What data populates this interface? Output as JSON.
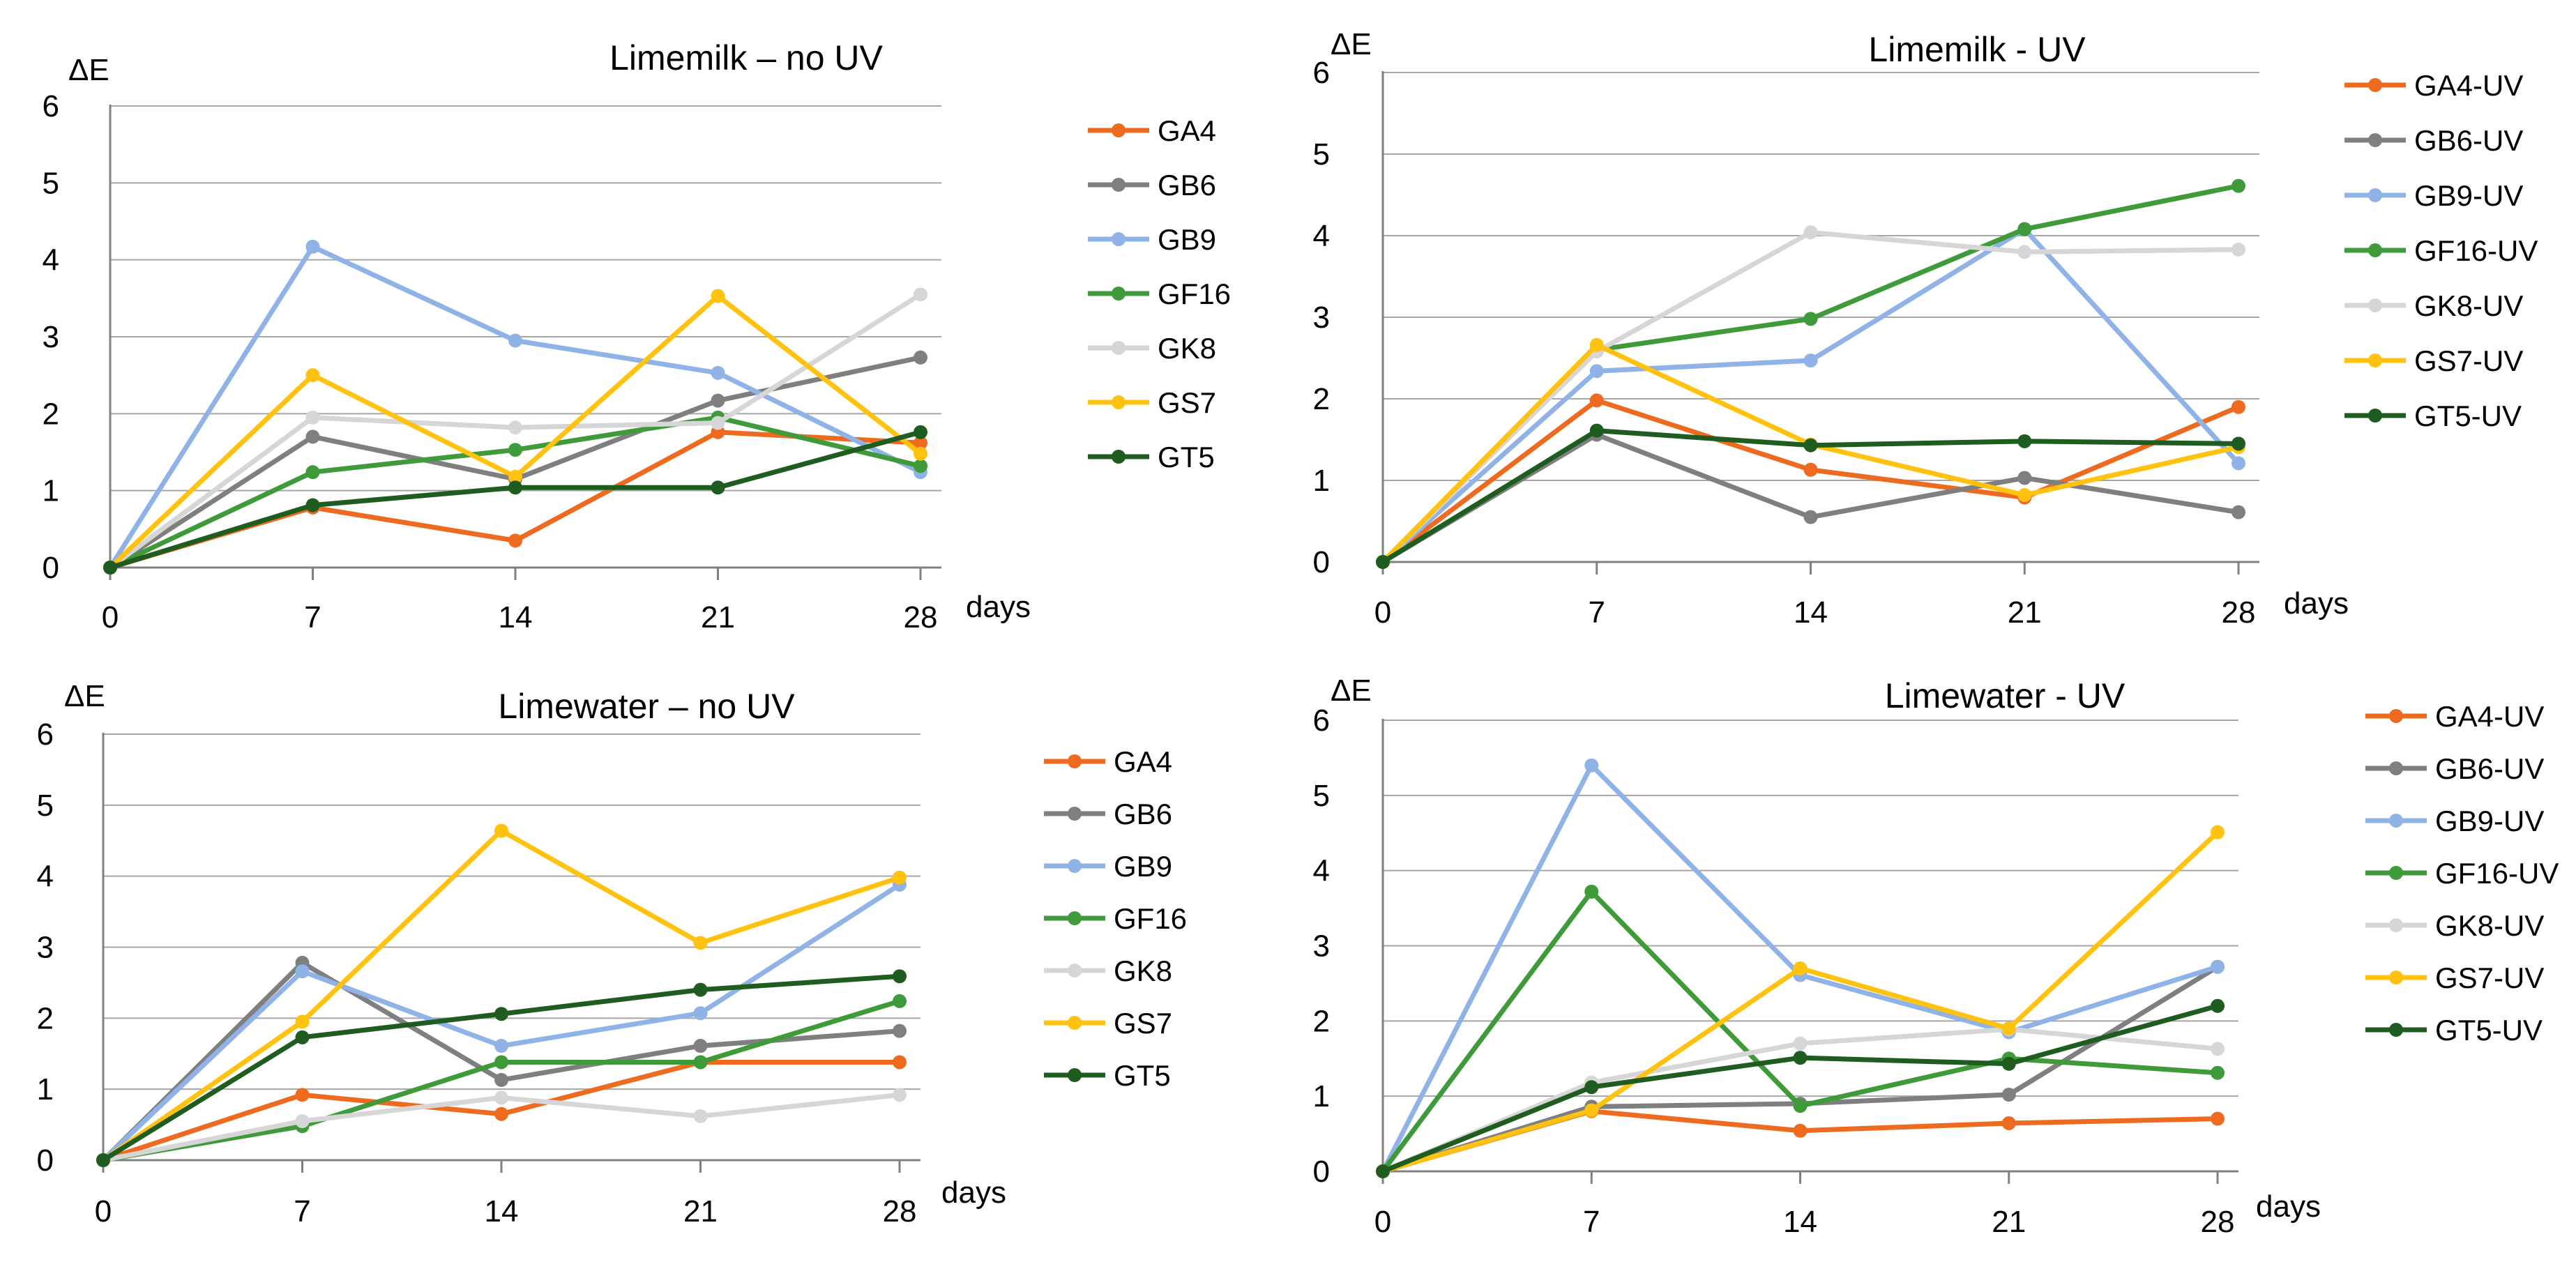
{
  "colors": {
    "GA4": "#ed6a1f",
    "GB6": "#7f7f7f",
    "GB9": "#8fb3e6",
    "GF16": "#3f9a3a",
    "GK8": "#d6d6d6",
    "GS7": "#ffc20e",
    "GT5": "#1f5c1f"
  },
  "chart_data": [
    {
      "type": "line",
      "title": "Limemilk – no UV",
      "ylabel": "ΔE",
      "xlabel": "days",
      "categories": [
        "0",
        "7",
        "14",
        "21",
        "28"
      ],
      "x": [
        0,
        7,
        14,
        21,
        28
      ],
      "ylim": [
        0,
        6
      ],
      "yticks": [
        "0",
        "1",
        "2",
        "3",
        "4",
        "5",
        "6"
      ],
      "legend_position": "right",
      "series": [
        {
          "name": "GA4",
          "key": "GA4",
          "values": [
            0,
            0.78,
            0.35,
            1.76,
            1.62
          ]
        },
        {
          "name": "GB6",
          "key": "GB6",
          "values": [
            0,
            1.7,
            1.15,
            2.17,
            2.73
          ]
        },
        {
          "name": "GB9",
          "key": "GB9",
          "values": [
            0,
            4.17,
            2.95,
            2.53,
            1.24
          ]
        },
        {
          "name": "GF16",
          "key": "GF16",
          "values": [
            0,
            1.24,
            1.53,
            1.95,
            1.32
          ]
        },
        {
          "name": "GK8",
          "key": "GK8",
          "values": [
            0,
            1.95,
            1.82,
            1.88,
            3.55
          ]
        },
        {
          "name": "GS7",
          "key": "GS7",
          "values": [
            0,
            2.5,
            1.18,
            3.53,
            1.48
          ]
        },
        {
          "name": "GT5",
          "key": "GT5",
          "values": [
            0,
            0.81,
            1.04,
            1.04,
            1.76
          ]
        }
      ]
    },
    {
      "type": "line",
      "title": "Limemilk - UV",
      "ylabel": "ΔE",
      "xlabel": "days",
      "categories": [
        "0",
        "7",
        "14",
        "21",
        "28"
      ],
      "x": [
        0,
        7,
        14,
        21,
        28
      ],
      "ylim": [
        0,
        6
      ],
      "yticks": [
        "0",
        "1",
        "2",
        "3",
        "4",
        "5",
        "6"
      ],
      "legend_position": "right",
      "series": [
        {
          "name": "GA4-UV",
          "key": "GA4",
          "values": [
            0,
            1.98,
            1.13,
            0.79,
            1.9
          ]
        },
        {
          "name": "GB6-UV",
          "key": "GB6",
          "values": [
            0,
            1.56,
            0.55,
            1.03,
            0.61
          ]
        },
        {
          "name": "GB9-UV",
          "key": "GB9",
          "values": [
            0,
            2.34,
            2.47,
            4.08,
            1.21
          ]
        },
        {
          "name": "GF16-UV",
          "key": "GF16",
          "values": [
            0,
            2.6,
            2.98,
            4.08,
            4.61
          ]
        },
        {
          "name": "GK8-UV",
          "key": "GK8",
          "values": [
            0,
            2.58,
            4.04,
            3.8,
            3.83
          ]
        },
        {
          "name": "GS7-UV",
          "key": "GS7",
          "values": [
            0,
            2.66,
            1.44,
            0.82,
            1.41
          ]
        },
        {
          "name": "GT5-UV",
          "key": "GT5",
          "values": [
            0,
            1.61,
            1.43,
            1.48,
            1.45
          ]
        }
      ]
    },
    {
      "type": "line",
      "title": "Limewater – no UV",
      "ylabel": "ΔE",
      "xlabel": "days",
      "categories": [
        "0",
        "7",
        "14",
        "21",
        "28"
      ],
      "x": [
        0,
        7,
        14,
        21,
        28
      ],
      "ylim": [
        0,
        6
      ],
      "yticks": [
        "0",
        "1",
        "2",
        "3",
        "4",
        "5",
        "6"
      ],
      "legend_position": "right",
      "series": [
        {
          "name": "GA4",
          "key": "GA4",
          "values": [
            0,
            0.92,
            0.65,
            1.38,
            1.38
          ]
        },
        {
          "name": "GB6",
          "key": "GB6",
          "values": [
            0,
            2.78,
            1.13,
            1.61,
            1.82
          ]
        },
        {
          "name": "GB9",
          "key": "GB9",
          "values": [
            0,
            2.66,
            1.61,
            2.07,
            3.88
          ]
        },
        {
          "name": "GF16",
          "key": "GF16",
          "values": [
            0,
            0.48,
            1.38,
            1.38,
            2.24
          ]
        },
        {
          "name": "GK8",
          "key": "GK8",
          "values": [
            0,
            0.55,
            0.88,
            0.62,
            0.92
          ]
        },
        {
          "name": "GS7",
          "key": "GS7",
          "values": [
            0,
            1.95,
            4.64,
            3.06,
            3.98
          ]
        },
        {
          "name": "GT5",
          "key": "GT5",
          "values": [
            0,
            1.73,
            2.06,
            2.4,
            2.59
          ]
        }
      ]
    },
    {
      "type": "line",
      "title": "Limewater - UV",
      "ylabel": "ΔE",
      "xlabel": "days",
      "categories": [
        "0",
        "7",
        "14",
        "21",
        "28"
      ],
      "x": [
        0,
        7,
        14,
        21,
        28
      ],
      "ylim": [
        0,
        6
      ],
      "yticks": [
        "0",
        "1",
        "2",
        "3",
        "4",
        "5",
        "6"
      ],
      "legend_position": "right",
      "series": [
        {
          "name": "GA4-UV",
          "key": "GA4",
          "values": [
            0,
            0.8,
            0.54,
            0.64,
            0.7
          ]
        },
        {
          "name": "GB6-UV",
          "key": "GB6",
          "values": [
            0,
            0.86,
            0.9,
            1.02,
            2.72
          ]
        },
        {
          "name": "GB9-UV",
          "key": "GB9",
          "values": [
            0,
            5.4,
            2.61,
            1.85,
            2.72
          ]
        },
        {
          "name": "GF16-UV",
          "key": "GF16",
          "values": [
            0,
            3.72,
            0.87,
            1.5,
            1.31
          ]
        },
        {
          "name": "GK8-UV",
          "key": "GK8",
          "values": [
            0,
            1.18,
            1.7,
            1.89,
            1.63
          ]
        },
        {
          "name": "GS7-UV",
          "key": "GS7",
          "values": [
            0,
            0.81,
            2.7,
            1.9,
            4.51
          ]
        },
        {
          "name": "GT5-UV",
          "key": "GT5",
          "values": [
            0,
            1.12,
            1.51,
            1.43,
            2.2
          ]
        }
      ]
    }
  ]
}
